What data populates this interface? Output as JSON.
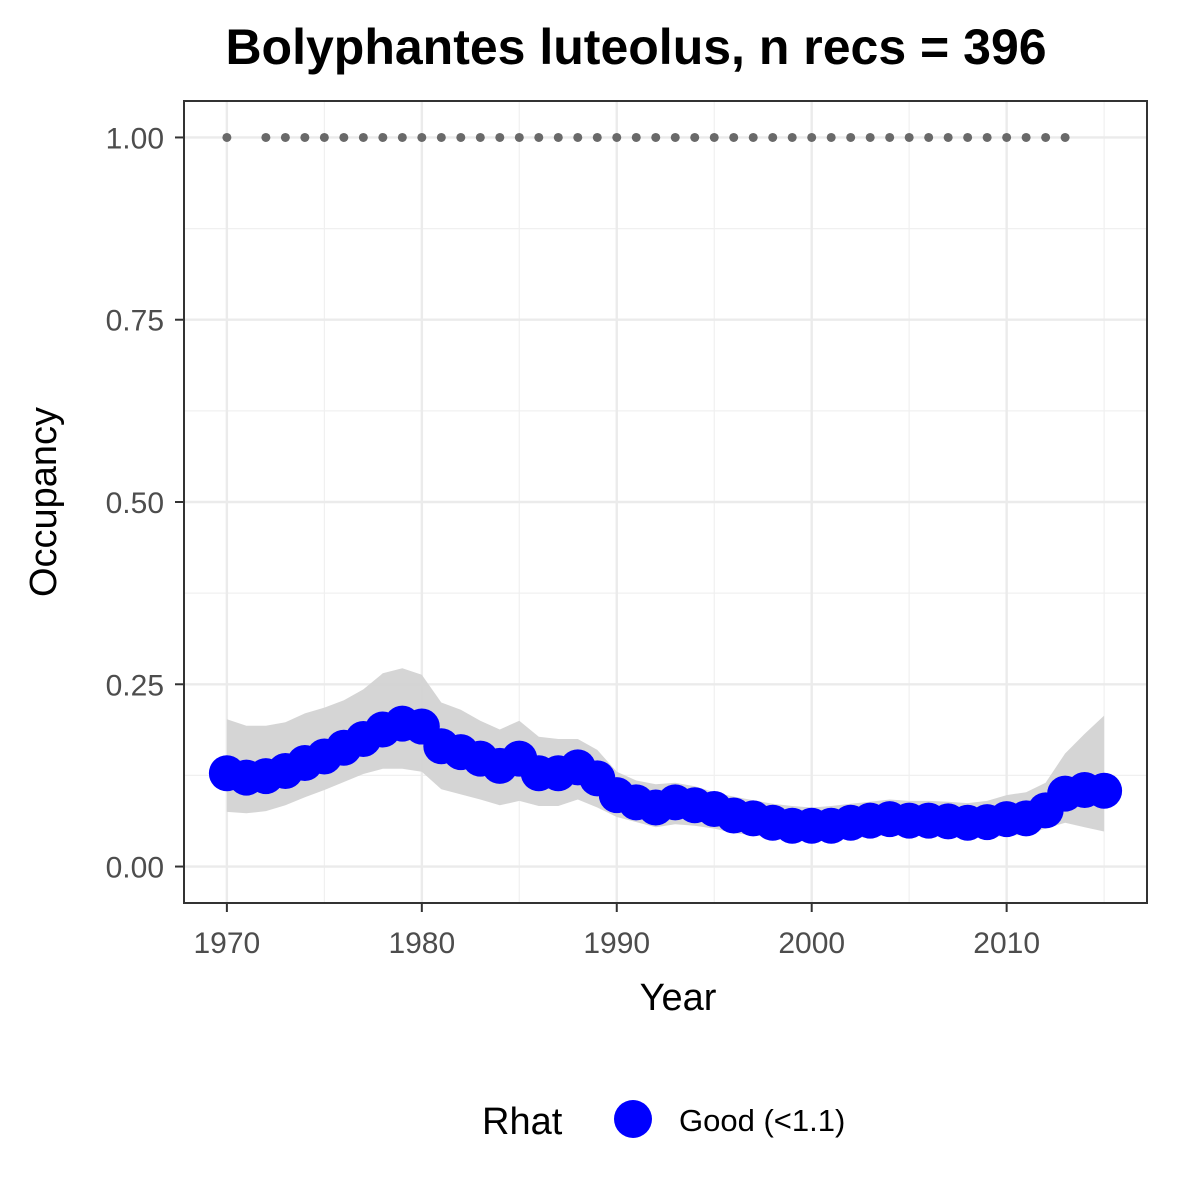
{
  "chart_data": {
    "type": "line",
    "title": "Bolyphantes luteolus, n recs = 396",
    "xlabel": "Year",
    "ylabel": "Occupancy",
    "xlim": [
      1967.8,
      2017.2
    ],
    "ylim": [
      -0.05,
      1.05
    ],
    "xticks": [
      1970,
      1980,
      1990,
      2000,
      2010
    ],
    "xtick_labels": [
      "1970",
      "1980",
      "1990",
      "2000",
      "2010"
    ],
    "yticks": [
      0,
      0.25,
      0.5,
      0.75,
      1.0
    ],
    "ytick_labels": [
      "0.00",
      "0.25",
      "0.50",
      "0.75",
      "1.00"
    ],
    "grid": true,
    "legend": {
      "title": "Rhat",
      "position": "bottom",
      "entries": [
        {
          "label": "Good (<1.1)",
          "color": "#0000ff"
        }
      ]
    },
    "x": [
      1970,
      1971,
      1972,
      1973,
      1974,
      1975,
      1976,
      1977,
      1978,
      1979,
      1980,
      1981,
      1982,
      1983,
      1984,
      1985,
      1986,
      1987,
      1988,
      1989,
      1990,
      1991,
      1992,
      1993,
      1994,
      1995,
      1996,
      1997,
      1998,
      1999,
      2000,
      2001,
      2002,
      2003,
      2004,
      2005,
      2006,
      2007,
      2008,
      2009,
      2010,
      2011,
      2012,
      2013,
      2014,
      2015
    ],
    "series": [
      {
        "name": "Good (<1.1)",
        "color": "#0000ff",
        "values": [
          0.128,
          0.122,
          0.124,
          0.131,
          0.142,
          0.151,
          0.163,
          0.175,
          0.188,
          0.196,
          0.192,
          0.165,
          0.157,
          0.148,
          0.138,
          0.148,
          0.128,
          0.128,
          0.136,
          0.121,
          0.098,
          0.088,
          0.081,
          0.088,
          0.084,
          0.079,
          0.07,
          0.066,
          0.06,
          0.056,
          0.056,
          0.056,
          0.06,
          0.063,
          0.065,
          0.063,
          0.063,
          0.062,
          0.06,
          0.061,
          0.065,
          0.066,
          0.077,
          0.1,
          0.105,
          0.104
        ]
      }
    ],
    "ci_band": {
      "color": "#d3d3d3",
      "upper": [
        0.202,
        0.193,
        0.193,
        0.198,
        0.21,
        0.218,
        0.228,
        0.243,
        0.265,
        0.272,
        0.263,
        0.225,
        0.215,
        0.2,
        0.188,
        0.2,
        0.178,
        0.175,
        0.175,
        0.16,
        0.13,
        0.118,
        0.113,
        0.115,
        0.11,
        0.102,
        0.096,
        0.091,
        0.086,
        0.083,
        0.081,
        0.083,
        0.086,
        0.089,
        0.092,
        0.09,
        0.09,
        0.089,
        0.087,
        0.09,
        0.098,
        0.102,
        0.115,
        0.155,
        0.182,
        0.207
      ],
      "lower": [
        0.075,
        0.073,
        0.076,
        0.084,
        0.095,
        0.105,
        0.116,
        0.127,
        0.134,
        0.134,
        0.13,
        0.106,
        0.099,
        0.092,
        0.084,
        0.09,
        0.083,
        0.083,
        0.092,
        0.081,
        0.068,
        0.061,
        0.054,
        0.058,
        0.056,
        0.052,
        0.046,
        0.043,
        0.039,
        0.036,
        0.036,
        0.036,
        0.039,
        0.041,
        0.043,
        0.042,
        0.042,
        0.041,
        0.04,
        0.04,
        0.042,
        0.044,
        0.052,
        0.06,
        0.054,
        0.048
      ]
    },
    "record_years": {
      "color": "#696969",
      "y": 1.0,
      "x": [
        1970,
        1972,
        1973,
        1974,
        1975,
        1976,
        1977,
        1978,
        1979,
        1980,
        1981,
        1982,
        1983,
        1984,
        1985,
        1986,
        1987,
        1988,
        1989,
        1990,
        1991,
        1992,
        1993,
        1994,
        1995,
        1996,
        1997,
        1998,
        1999,
        2000,
        2001,
        2002,
        2003,
        2004,
        2005,
        2006,
        2007,
        2008,
        2009,
        2010,
        2011,
        2012,
        2013
      ]
    }
  }
}
